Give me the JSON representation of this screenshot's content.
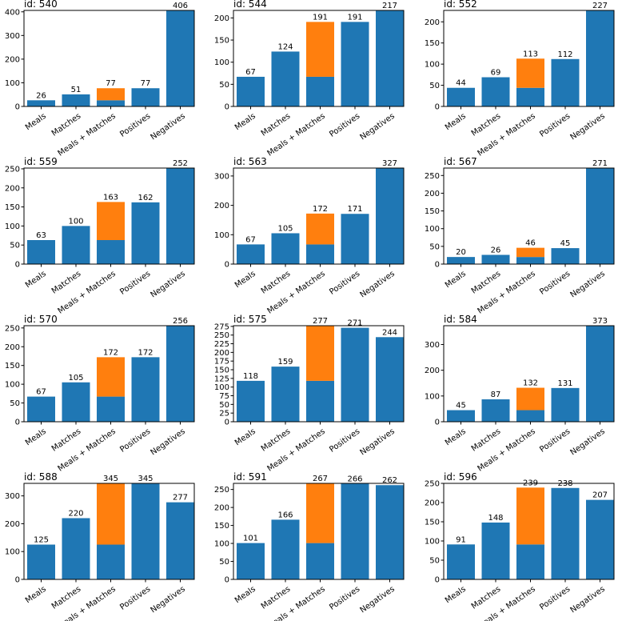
{
  "colors": {
    "base": "#1f77b4",
    "extra": "#ff7f0e"
  },
  "categories": [
    "Meals",
    "Matches",
    "Meals + Matches",
    "Positives",
    "Negatives"
  ],
  "chart_data": [
    {
      "type": "bar",
      "title": "id: 540",
      "categories": [
        "Meals",
        "Matches",
        "Meals + Matches",
        "Positives",
        "Negatives"
      ],
      "series": [
        {
          "name": "base",
          "values": [
            26,
            51,
            26,
            77,
            406
          ]
        },
        {
          "name": "stacked",
          "values": [
            0,
            0,
            51,
            0,
            0
          ]
        }
      ],
      "labels": [
        26,
        51,
        77,
        77,
        406
      ],
      "ylim": [
        0,
        406
      ],
      "yticks": [
        0,
        100,
        200,
        300,
        400
      ]
    },
    {
      "type": "bar",
      "title": "id: 544",
      "categories": [
        "Meals",
        "Matches",
        "Meals + Matches",
        "Positives",
        "Negatives"
      ],
      "series": [
        {
          "name": "base",
          "values": [
            67,
            124,
            67,
            191,
            217
          ]
        },
        {
          "name": "stacked",
          "values": [
            0,
            0,
            124,
            0,
            0
          ]
        }
      ],
      "labels": [
        67,
        124,
        191,
        191,
        217
      ],
      "ylim": [
        0,
        217
      ],
      "yticks": [
        0,
        50,
        100,
        150,
        200
      ]
    },
    {
      "type": "bar",
      "title": "id: 552",
      "categories": [
        "Meals",
        "Matches",
        "Meals + Matches",
        "Positives",
        "Negatives"
      ],
      "series": [
        {
          "name": "base",
          "values": [
            44,
            69,
            44,
            112,
            227
          ]
        },
        {
          "name": "stacked",
          "values": [
            0,
            0,
            69,
            0,
            0
          ]
        }
      ],
      "labels": [
        44,
        69,
        113,
        112,
        227
      ],
      "ylim": [
        0,
        227
      ],
      "yticks": [
        0,
        50,
        100,
        150,
        200
      ]
    },
    {
      "type": "bar",
      "title": "id: 559",
      "categories": [
        "Meals",
        "Matches",
        "Meals + Matches",
        "Positives",
        "Negatives"
      ],
      "series": [
        {
          "name": "base",
          "values": [
            63,
            100,
            63,
            162,
            252
          ]
        },
        {
          "name": "stacked",
          "values": [
            0,
            0,
            100,
            0,
            0
          ]
        }
      ],
      "labels": [
        63,
        100,
        163,
        162,
        252
      ],
      "ylim": [
        0,
        252
      ],
      "yticks": [
        0,
        50,
        100,
        150,
        200,
        250
      ]
    },
    {
      "type": "bar",
      "title": "id: 563",
      "categories": [
        "Meals",
        "Matches",
        "Meals + Matches",
        "Positives",
        "Negatives"
      ],
      "series": [
        {
          "name": "base",
          "values": [
            67,
            105,
            67,
            171,
            327
          ]
        },
        {
          "name": "stacked",
          "values": [
            0,
            0,
            105,
            0,
            0
          ]
        }
      ],
      "labels": [
        67,
        105,
        172,
        171,
        327
      ],
      "ylim": [
        0,
        327
      ],
      "yticks": [
        0,
        100,
        200,
        300
      ]
    },
    {
      "type": "bar",
      "title": "id: 567",
      "categories": [
        "Meals",
        "Matches",
        "Meals + Matches",
        "Positives",
        "Negatives"
      ],
      "series": [
        {
          "name": "base",
          "values": [
            20,
            26,
            20,
            45,
            271
          ]
        },
        {
          "name": "stacked",
          "values": [
            0,
            0,
            26,
            0,
            0
          ]
        }
      ],
      "labels": [
        20,
        26,
        46,
        45,
        271
      ],
      "ylim": [
        0,
        271
      ],
      "yticks": [
        0,
        50,
        100,
        150,
        200,
        250
      ]
    },
    {
      "type": "bar",
      "title": "id: 570",
      "categories": [
        "Meals",
        "Matches",
        "Meals + Matches",
        "Positives",
        "Negatives"
      ],
      "series": [
        {
          "name": "base",
          "values": [
            67,
            105,
            67,
            172,
            256
          ]
        },
        {
          "name": "stacked",
          "values": [
            0,
            0,
            105,
            0,
            0
          ]
        }
      ],
      "labels": [
        67,
        105,
        172,
        172,
        256
      ],
      "ylim": [
        0,
        256
      ],
      "yticks": [
        0,
        50,
        100,
        150,
        200,
        250
      ]
    },
    {
      "type": "bar",
      "title": "id: 575",
      "categories": [
        "Meals",
        "Matches",
        "Meals + Matches",
        "Positives",
        "Negatives"
      ],
      "series": [
        {
          "name": "base",
          "values": [
            118,
            159,
            118,
            271,
            244
          ]
        },
        {
          "name": "stacked",
          "values": [
            0,
            0,
            159,
            0,
            0
          ]
        }
      ],
      "labels": [
        118,
        159,
        277,
        271,
        244
      ],
      "ylim": [
        0,
        277
      ],
      "yticks": [
        0,
        25,
        50,
        75,
        100,
        125,
        150,
        175,
        200,
        225,
        250,
        275
      ]
    },
    {
      "type": "bar",
      "title": "id: 584",
      "categories": [
        "Meals",
        "Matches",
        "Meals + Matches",
        "Positives",
        "Negatives"
      ],
      "series": [
        {
          "name": "base",
          "values": [
            45,
            87,
            45,
            131,
            373
          ]
        },
        {
          "name": "stacked",
          "values": [
            0,
            0,
            87,
            0,
            0
          ]
        }
      ],
      "labels": [
        45,
        87,
        132,
        131,
        373
      ],
      "ylim": [
        0,
        373
      ],
      "yticks": [
        0,
        100,
        200,
        300
      ]
    },
    {
      "type": "bar",
      "title": "id: 588",
      "categories": [
        "Meals",
        "Matches",
        "Meals + Matches",
        "Positives",
        "Negatives"
      ],
      "series": [
        {
          "name": "base",
          "values": [
            125,
            220,
            125,
            345,
            277
          ]
        },
        {
          "name": "stacked",
          "values": [
            0,
            0,
            220,
            0,
            0
          ]
        }
      ],
      "labels": [
        125,
        220,
        345,
        345,
        277
      ],
      "ylim": [
        0,
        345
      ],
      "yticks": [
        0,
        100,
        200,
        300
      ]
    },
    {
      "type": "bar",
      "title": "id: 591",
      "categories": [
        "Meals",
        "Matches",
        "Meals + Matches",
        "Positives",
        "Negatives"
      ],
      "series": [
        {
          "name": "base",
          "values": [
            101,
            166,
            101,
            266,
            262
          ]
        },
        {
          "name": "stacked",
          "values": [
            0,
            0,
            166,
            0,
            0
          ]
        }
      ],
      "labels": [
        101,
        166,
        267,
        266,
        262
      ],
      "ylim": [
        0,
        267
      ],
      "yticks": [
        0,
        50,
        100,
        150,
        200,
        250
      ]
    },
    {
      "type": "bar",
      "title": "id: 596",
      "categories": [
        "Meals",
        "Matches",
        "Meals + Matches",
        "Positives",
        "Negatives"
      ],
      "series": [
        {
          "name": "base",
          "values": [
            91,
            148,
            91,
            238,
            207
          ]
        },
        {
          "name": "stacked",
          "values": [
            0,
            0,
            148,
            0,
            0
          ]
        }
      ],
      "labels": [
        91,
        148,
        239,
        238,
        207
      ],
      "ylim": [
        0,
        250
      ],
      "yticks": [
        0,
        50,
        100,
        150,
        200,
        250
      ]
    }
  ]
}
